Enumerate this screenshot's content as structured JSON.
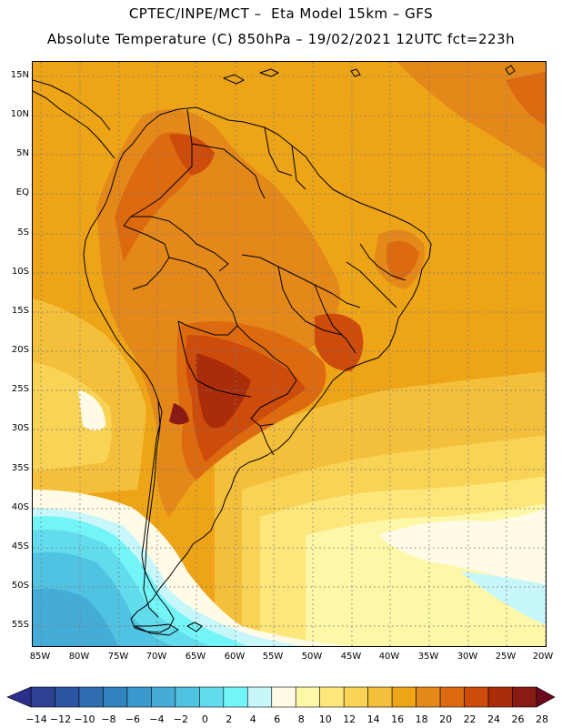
{
  "header": {
    "line1": "CPTEC/INPE/MCT –  Eta Model 15km – GFS",
    "line2": "Absolute Temperature (C) 850hPa – 19/02/2021 12UTC fct=223h"
  },
  "axes": {
    "lat_labels": [
      "15N",
      "10N",
      "5N",
      "EQ",
      "5S",
      "10S",
      "15S",
      "20S",
      "25S",
      "30S",
      "35S",
      "40S",
      "45S",
      "50S",
      "55S"
    ],
    "lon_labels": [
      "85W",
      "80W",
      "75W",
      "70W",
      "65W",
      "60W",
      "55W",
      "50W",
      "45W",
      "40W",
      "35W",
      "30W",
      "25W",
      "20W"
    ]
  },
  "colorbar": {
    "tick_labels": [
      "-14",
      "-12",
      "-10",
      "-8",
      "-6",
      "-4",
      "-2",
      "0",
      "2",
      "4",
      "6",
      "8",
      "10",
      "12",
      "14",
      "16",
      "18",
      "20",
      "22",
      "24",
      "26",
      "28"
    ],
    "low_color": "#2a2f8c",
    "high_color": "#6b0a1e",
    "colors": [
      "#2f3f93",
      "#2c55a3",
      "#2f6db2",
      "#3283bf",
      "#3b98cc",
      "#45acd7",
      "#51c3e2",
      "#62dbed",
      "#73f5f7",
      "#c7f6fb",
      "#fffbe6",
      "#fff7a8",
      "#fde77a",
      "#f9d356",
      "#f4bf3a",
      "#eda417",
      "#e4881a",
      "#de6a10",
      "#cd4b0b",
      "#ab2c09",
      "#8a1a14"
    ]
  },
  "map": {
    "colors": {
      "t6": "#c7f6fb",
      "t8": "#fffbe6",
      "t10": "#fff7a8",
      "t12": "#fde77a",
      "t14": "#f9d356",
      "t16": "#f4bf3a",
      "t18": "#eda417",
      "t20": "#e4881a",
      "t22": "#de6a10",
      "t24": "#cd4b0b",
      "t26": "#ab2c09",
      "t28": "#8a1a14",
      "cold0": "#73f5f7",
      "cold2": "#62dbed",
      "cold4": "#51c3e2",
      "cold6": "#45acd7"
    }
  }
}
